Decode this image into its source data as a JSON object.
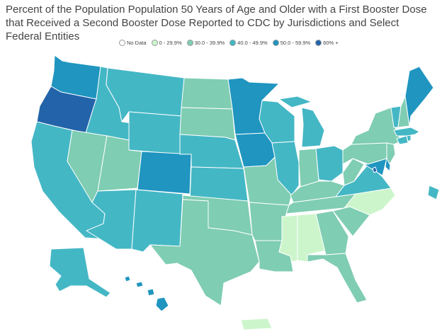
{
  "title": "Percent of the Population Population 50 Years of Age and Older with a First Booster Dose that Received a Second Booster Dose Reported to CDC by Jurisdictions and Select Federal Entities",
  "legend": [
    {
      "label": "No Data",
      "color": "#ffffff"
    },
    {
      "label": "0 - 29.9%",
      "color": "#ccf5cc"
    },
    {
      "label": "30.0 - 39.9%",
      "color": "#7fcdb2"
    },
    {
      "label": "40.0 - 49.9%",
      "color": "#44b7c5"
    },
    {
      "label": "50.0 - 59.9%",
      "color": "#1f95c0"
    },
    {
      "label": "60% +",
      "color": "#2263a9"
    }
  ],
  "categories": {
    "c2": "#ccf5cc",
    "c3": "#7fcdb2",
    "c4": "#44b7c5",
    "c5": "#1f95c0",
    "c6": "#2263a9"
  }
}
